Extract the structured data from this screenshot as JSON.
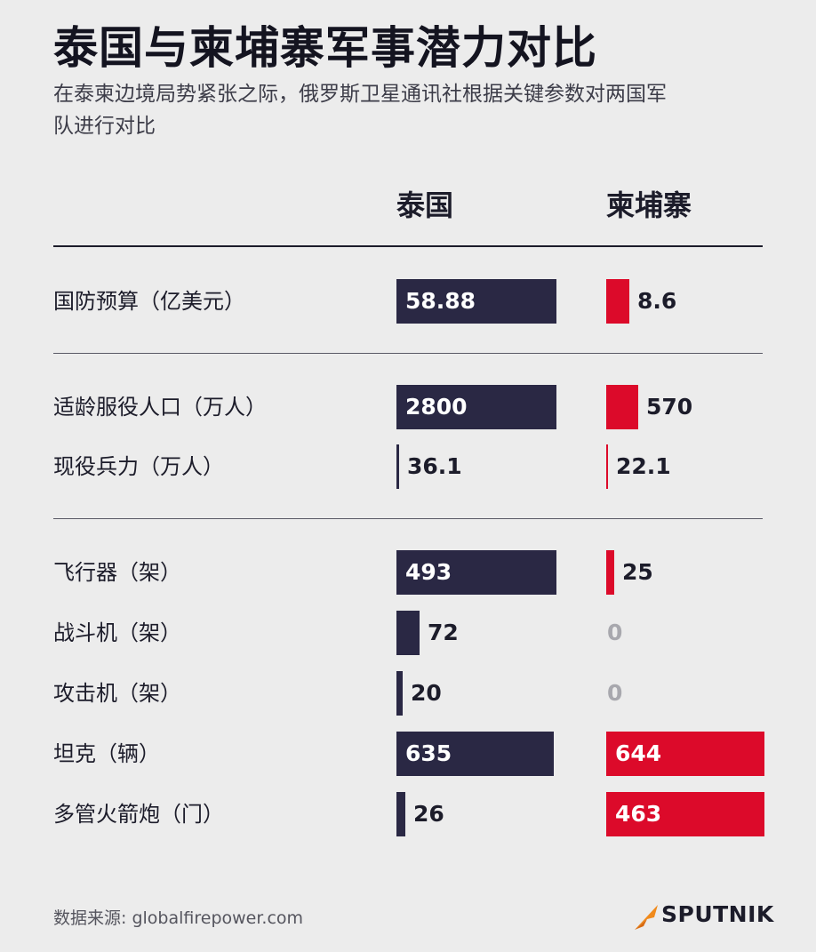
{
  "title": "泰国与柬埔寨军事潜力对比",
  "subtitle": "在泰柬边境局势紧张之际，俄罗斯卫星通讯社根据关键参数对两国军队进行对比",
  "columns": {
    "thailand": "泰国",
    "cambodia": "柬埔寨"
  },
  "colors": {
    "thailand": "#2a2844",
    "cambodia": "#dc0a2a",
    "background": "#ececec"
  },
  "chart_data": {
    "type": "bar",
    "title": "泰国与柬埔寨军事潜力对比",
    "categories": [
      "国防预算（亿美元）",
      "适龄服役人口（万人）",
      "现役兵力（万人）",
      "飞行器（架）",
      "战斗机（架）",
      "攻击机（架）",
      "坦克（辆）",
      "多管火箭炮（门）"
    ],
    "groups": [
      [
        0
      ],
      [
        1,
        2
      ],
      [
        3,
        4,
        5,
        6,
        7
      ]
    ],
    "series": [
      {
        "name": "泰国",
        "values": [
          58.88,
          2800,
          36.1,
          493,
          72,
          20,
          635,
          26
        ],
        "labels": [
          "58.88",
          "2800",
          "36.1",
          "493",
          "72",
          "20",
          "635",
          "26"
        ],
        "fill_fraction": [
          1.0,
          1.0,
          0.013,
          1.0,
          0.146,
          0.041,
          0.986,
          0.056
        ]
      },
      {
        "name": "柬埔寨",
        "values": [
          8.6,
          570,
          22.1,
          25,
          0,
          0,
          644,
          463
        ],
        "labels": [
          "8.6",
          "570",
          "22.1",
          "25",
          "0",
          "0",
          "644",
          "463"
        ],
        "fill_fraction": [
          0.146,
          0.204,
          0.008,
          0.051,
          0,
          0,
          1.0,
          1.0
        ]
      }
    ]
  },
  "footer": {
    "source": "数据来源: globalfirepower.com",
    "logo_text": "SPUTNIK"
  }
}
